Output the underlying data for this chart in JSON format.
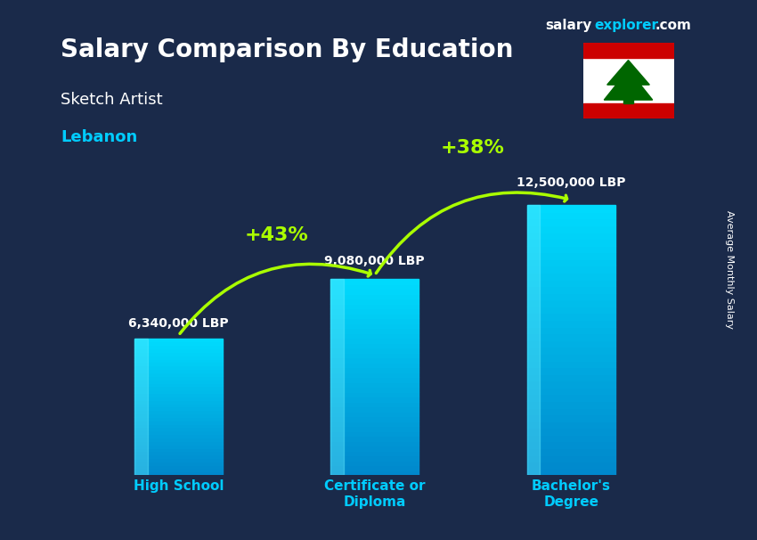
{
  "title_bold": "Salary Comparison By Education",
  "subtitle": "Sketch Artist",
  "country": "Lebanon",
  "categories": [
    "High School",
    "Certificate or\nDiploma",
    "Bachelor's\nDegree"
  ],
  "values": [
    6340000,
    9080000,
    12500000
  ],
  "value_labels": [
    "6,340,000 LBP",
    "9,080,000 LBP",
    "12,500,000 LBP"
  ],
  "pct_labels": [
    "+43%",
    "+38%"
  ],
  "bar_color_top": "#00d4ff",
  "bar_color_bottom": "#0088cc",
  "bar_color_mid": "#00aadd",
  "background_color": "#1a2a4a",
  "overlay_alpha": 0.55,
  "title_color": "#ffffff",
  "subtitle_color": "#ffffff",
  "country_color": "#00ccff",
  "value_color": "#ffffff",
  "pct_color": "#aaff00",
  "xlabel_color": "#00ccff",
  "site_color_salary": "#ffffff",
  "site_color_explorer": "#00ccff",
  "site_color_com": "#ffffff",
  "arrow_color": "#aaff00",
  "ylim": [
    0,
    15000000
  ],
  "bar_width": 0.45
}
